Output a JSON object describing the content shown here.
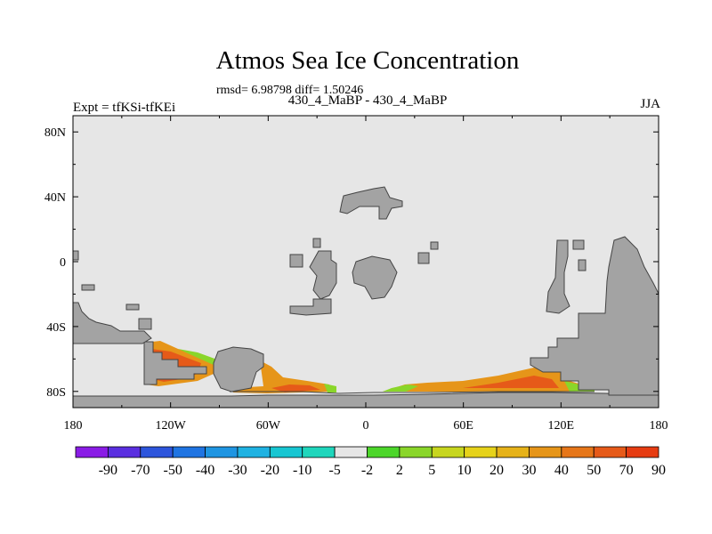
{
  "chart_data": {
    "type": "heatmap",
    "title": "Atmos Sea Ice Concentration",
    "stats": "rmsd= 6.98798 diff= 1.50246",
    "subtitle": "430_4_MaBP - 430_4_MaBP",
    "experiment": "Expt = tfKSi-tfKEi",
    "season": "JJA",
    "x_ticks": [
      "180",
      "120W",
      "60W",
      "0",
      "60E",
      "120E",
      "180"
    ],
    "y_ticks": [
      "80N",
      "40N",
      "0",
      "40S",
      "80S"
    ],
    "x_range": [
      -180,
      180
    ],
    "y_range": [
      -90,
      90
    ],
    "colorbar_labels": [
      "-90",
      "-70",
      "-50",
      "-40",
      "-30",
      "-20",
      "-10",
      "-5",
      "-2",
      "2",
      "5",
      "10",
      "20",
      "30",
      "40",
      "50",
      "70",
      "90"
    ],
    "colorbar_colors": [
      "#8a1ce6",
      "#5a2fe0",
      "#2d55dc",
      "#1f74e2",
      "#1f95e2",
      "#1fb2e2",
      "#17c6d2",
      "#1fd6bc",
      "#e6e6e6",
      "#4cd62a",
      "#8ad62a",
      "#c7d61f",
      "#e6d21a",
      "#e6b219",
      "#e69519",
      "#e67619",
      "#e65a19",
      "#e63c12"
    ],
    "land_color": "#a3a3a3",
    "ocean_color": "#e6e6e6"
  }
}
